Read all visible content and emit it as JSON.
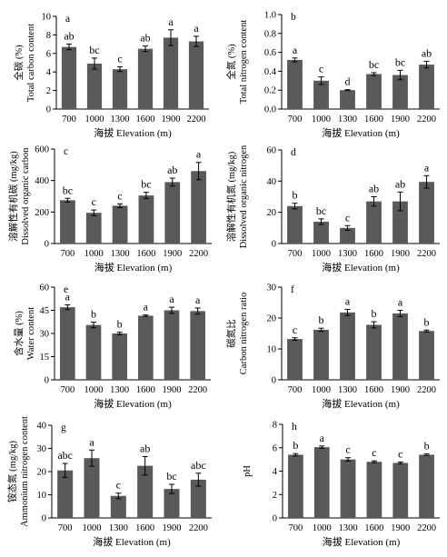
{
  "figure": {
    "x_categories": [
      "700",
      "1000",
      "1300",
      "1600",
      "1900",
      "2200"
    ]
  },
  "chart_data": [
    {
      "type": "bar",
      "panel_letter": "a",
      "categories": [
        "700",
        "1000",
        "1300",
        "1600",
        "1900",
        "2200"
      ],
      "values": [
        6.7,
        4.9,
        4.3,
        6.5,
        7.7,
        7.3
      ],
      "errors": [
        0.3,
        0.6,
        0.25,
        0.3,
        0.85,
        0.55
      ],
      "sig_letters": [
        "ab",
        "bc",
        "c",
        "ab",
        "a",
        "a"
      ],
      "xlabel": "海拔 Elevation (m)",
      "ylabel_lines": [
        "全碳 (%)",
        "Total carbon content"
      ],
      "ylim": [
        0,
        10
      ],
      "yticks": [
        "0",
        "2",
        "4",
        "6",
        "8",
        "10"
      ],
      "bar_color": "#595959"
    },
    {
      "type": "bar",
      "panel_letter": "b",
      "categories": [
        "700",
        "1000",
        "1300",
        "1600",
        "1900",
        "2200"
      ],
      "values": [
        0.52,
        0.3,
        0.2,
        0.37,
        0.36,
        0.47
      ],
      "errors": [
        0.02,
        0.04,
        0.005,
        0.015,
        0.05,
        0.035
      ],
      "sig_letters": [
        "a",
        "c",
        "d",
        "bc",
        "bc",
        "ab"
      ],
      "xlabel": "海拔 Elevation (m)",
      "ylabel_lines": [
        "全氮 (%)",
        "Total nitrogen content"
      ],
      "ylim": [
        0,
        1.0
      ],
      "yticks": [
        "0.0",
        "0.2",
        "0.4",
        "0.6",
        "0.8",
        "1.0"
      ],
      "bar_color": "#595959"
    },
    {
      "type": "bar",
      "panel_letter": "c",
      "categories": [
        "700",
        "1000",
        "1300",
        "1600",
        "1900",
        "2200"
      ],
      "values": [
        275,
        195,
        240,
        305,
        390,
        460
      ],
      "errors": [
        12,
        18,
        12,
        20,
        25,
        55
      ],
      "sig_letters": [
        "bc",
        "c",
        "c",
        "bc",
        "ab",
        "a"
      ],
      "xlabel": "海拔 Elevation (m)",
      "ylabel_lines": [
        "溶解性有机碳 (mg/kg)",
        "Dissolved organic carbon"
      ],
      "ylim": [
        0,
        600
      ],
      "yticks": [
        "0",
        "200",
        "400",
        "600"
      ],
      "bar_color": "#595959"
    },
    {
      "type": "bar",
      "panel_letter": "d",
      "categories": [
        "700",
        "1000",
        "1300",
        "1600",
        "1900",
        "2200"
      ],
      "values": [
        24,
        14,
        10,
        27,
        27,
        39.5
      ],
      "errors": [
        1.8,
        1.8,
        1.5,
        3.0,
        6.0,
        4.0
      ],
      "sig_letters": [
        "b",
        "bc",
        "c",
        "ab",
        "ab",
        "a"
      ],
      "xlabel": "海拔 Elevation (m)",
      "ylabel_lines": [
        "溶解性有机氮 (mg/kg)",
        "Dissolved organic nitrogen"
      ],
      "ylim": [
        0,
        60
      ],
      "yticks": [
        "0",
        "20",
        "40",
        "60"
      ],
      "bar_color": "#595959"
    },
    {
      "type": "bar",
      "panel_letter": "e",
      "categories": [
        "700",
        "1000",
        "1300",
        "1600",
        "1900",
        "2200"
      ],
      "values": [
        47,
        35.5,
        30,
        41.5,
        45,
        44.5
      ],
      "errors": [
        1.5,
        1.8,
        0.8,
        0.5,
        2.0,
        2.0
      ],
      "sig_letters": [
        "a",
        "b",
        "b",
        "a",
        "a",
        "a"
      ],
      "xlabel": "海拔 Elevation (m)",
      "ylabel_lines": [
        "含水量 (%)",
        "Water content"
      ],
      "ylim": [
        0,
        60
      ],
      "yticks": [
        "0",
        "15",
        "30",
        "45",
        "60"
      ],
      "bar_color": "#595959"
    },
    {
      "type": "bar",
      "panel_letter": "f",
      "categories": [
        "700",
        "1000",
        "1300",
        "1600",
        "1900",
        "2200"
      ],
      "values": [
        13.2,
        16.2,
        21.8,
        17.8,
        21.5,
        15.8
      ],
      "errors": [
        0.4,
        0.5,
        1.0,
        1.0,
        1.0,
        0.3
      ],
      "sig_letters": [
        "c",
        "b",
        "a",
        "b",
        "a",
        "b"
      ],
      "xlabel": "海拔 Elevation (m)",
      "ylabel_lines": [
        "碳氮比",
        "Carbon nitrogen ratio"
      ],
      "ylim": [
        0,
        30
      ],
      "yticks": [
        "0",
        "10",
        "20",
        "30"
      ],
      "bar_color": "#595959"
    },
    {
      "type": "bar",
      "panel_letter": "g",
      "categories": [
        "700",
        "1000",
        "1300",
        "1600",
        "1900",
        "2200"
      ],
      "values": [
        20.5,
        25.8,
        9.5,
        22.5,
        12.5,
        16.5
      ],
      "errors": [
        3.0,
        3.5,
        1.2,
        4.0,
        2.0,
        2.8
      ],
      "sig_letters": [
        "abc",
        "a",
        "c",
        "ab",
        "bc",
        "abc"
      ],
      "xlabel": "海拔 Elevation (m)",
      "ylabel_lines": [
        "铵态氮 (mg/kg)",
        "Ammonium nitrogen content"
      ],
      "ylim": [
        0,
        40
      ],
      "yticks": [
        "0",
        "10",
        "20",
        "30",
        "40"
      ],
      "bar_color": "#595959"
    },
    {
      "type": "bar",
      "panel_letter": "h",
      "categories": [
        "700",
        "1000",
        "1300",
        "1600",
        "1900",
        "2200"
      ],
      "values": [
        5.4,
        6.05,
        5.0,
        4.8,
        4.7,
        5.4
      ],
      "errors": [
        0.1,
        0.1,
        0.15,
        0.08,
        0.08,
        0.08
      ],
      "sig_letters": [
        "b",
        "a",
        "c",
        "c",
        "c",
        "b"
      ],
      "xlabel": "海拔 Elevation (m)",
      "ylabel_lines": [
        "pH"
      ],
      "ylim": [
        0,
        8
      ],
      "yticks": [
        "0",
        "2",
        "4",
        "6",
        "8"
      ],
      "bar_color": "#595959"
    }
  ]
}
